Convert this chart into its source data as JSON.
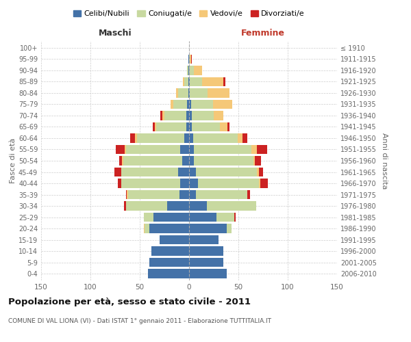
{
  "age_groups": [
    "0-4",
    "5-9",
    "10-14",
    "15-19",
    "20-24",
    "25-29",
    "30-34",
    "35-39",
    "40-44",
    "45-49",
    "50-54",
    "55-59",
    "60-64",
    "65-69",
    "70-74",
    "75-79",
    "80-84",
    "85-89",
    "90-94",
    "95-99",
    "100+"
  ],
  "birth_years": [
    "2006-2010",
    "2001-2005",
    "1996-2000",
    "1991-1995",
    "1986-1990",
    "1981-1985",
    "1976-1980",
    "1971-1975",
    "1966-1970",
    "1961-1965",
    "1956-1960",
    "1951-1955",
    "1946-1950",
    "1941-1945",
    "1936-1940",
    "1931-1935",
    "1926-1930",
    "1921-1925",
    "1916-1920",
    "1911-1915",
    "≤ 1910"
  ],
  "males_celibi": [
    42,
    40,
    38,
    30,
    40,
    36,
    22,
    10,
    9,
    11,
    7,
    9,
    5,
    3,
    3,
    2,
    1,
    1,
    1,
    1,
    0
  ],
  "males_coniugati": [
    0,
    0,
    0,
    0,
    5,
    10,
    42,
    52,
    60,
    58,
    60,
    55,
    48,
    30,
    22,
    14,
    10,
    4,
    1,
    0,
    0
  ],
  "males_vedovi": [
    0,
    0,
    0,
    0,
    1,
    0,
    0,
    1,
    0,
    0,
    1,
    1,
    2,
    2,
    2,
    3,
    2,
    1,
    0,
    0,
    0
  ],
  "males_divorziati": [
    0,
    0,
    0,
    0,
    0,
    0,
    2,
    1,
    3,
    7,
    3,
    9,
    5,
    2,
    2,
    0,
    0,
    0,
    0,
    0,
    0
  ],
  "females_nubili": [
    38,
    35,
    35,
    30,
    38,
    28,
    18,
    7,
    9,
    7,
    5,
    5,
    4,
    3,
    3,
    2,
    1,
    1,
    0,
    0,
    0
  ],
  "females_coniugate": [
    0,
    0,
    0,
    0,
    5,
    18,
    50,
    52,
    62,
    62,
    60,
    58,
    45,
    28,
    22,
    22,
    18,
    12,
    5,
    1,
    0
  ],
  "females_vedove": [
    0,
    0,
    0,
    0,
    0,
    0,
    0,
    0,
    1,
    2,
    2,
    6,
    5,
    8,
    10,
    20,
    22,
    22,
    8,
    1,
    0
  ],
  "females_divorziate": [
    0,
    0,
    0,
    0,
    0,
    1,
    0,
    3,
    8,
    4,
    6,
    10,
    5,
    2,
    0,
    0,
    0,
    2,
    0,
    1,
    0
  ],
  "color_celibi": "#4472a8",
  "color_coniugati": "#c8d9a0",
  "color_vedovi": "#f5c878",
  "color_divorziati": "#cc2222",
  "title": "Popolazione per età, sesso e stato civile - 2011",
  "subtitle": "COMUNE DI VAL LIONA (VI) - Dati ISTAT 1° gennaio 2011 - Elaborazione TUTTITALIA.IT",
  "legend_labels": [
    "Celibi/Nubili",
    "Coniugati/e",
    "Vedovi/e",
    "Divorziati/e"
  ],
  "xlim": 150,
  "bg_color": "#ffffff",
  "grid_color": "#cccccc"
}
